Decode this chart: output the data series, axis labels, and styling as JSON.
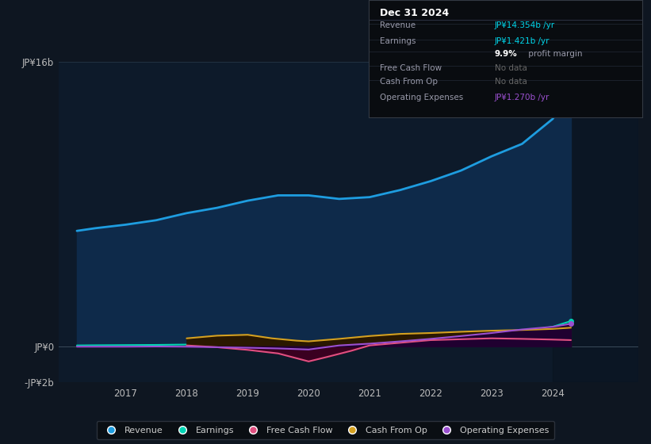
{
  "background_color": "#0e1621",
  "chart_bg_color": "#0d1a2a",
  "ylim": [
    -2000000000.0,
    16000000000.0
  ],
  "ytick_labels": [
    "-JP¥2b",
    "JP¥0",
    "JP¥16b"
  ],
  "ytick_values": [
    -2000000000.0,
    0,
    16000000000.0
  ],
  "xlabel_years": [
    2017,
    2018,
    2019,
    2020,
    2021,
    2022,
    2023,
    2024
  ],
  "xlim_left": 2015.9,
  "xlim_right": 2025.4,
  "shaded_start": 2024.0,
  "series": {
    "Revenue": {
      "color": "#1e9de0",
      "fill_color": "#0e2a4a",
      "x": [
        2016.2,
        2016.5,
        2017.0,
        2017.5,
        2018.0,
        2018.5,
        2019.0,
        2019.5,
        2020.0,
        2020.5,
        2021.0,
        2021.5,
        2022.0,
        2022.5,
        2023.0,
        2023.5,
        2024.0,
        2024.3
      ],
      "y": [
        6500000000.0,
        6650000000.0,
        6850000000.0,
        7100000000.0,
        7500000000.0,
        7800000000.0,
        8200000000.0,
        8500000000.0,
        8500000000.0,
        8300000000.0,
        8400000000.0,
        8800000000.0,
        9300000000.0,
        9900000000.0,
        10700000000.0,
        11400000000.0,
        12800000000.0,
        14354000000.0
      ]
    },
    "Earnings": {
      "color": "#00d4b4",
      "fill_color": "#003030",
      "x": [
        2016.2,
        2016.5,
        2017.0,
        2017.5,
        2018.0,
        2018.5,
        2019.0,
        2019.5,
        2020.0,
        2020.5,
        2021.0,
        2021.5,
        2022.0,
        2022.5,
        2023.0,
        2023.5,
        2024.0,
        2024.3
      ],
      "y": [
        50000000.0,
        60000000.0,
        70000000.0,
        80000000.0,
        100000000.0,
        120000000.0,
        130000000.0,
        110000000.0,
        60000000.0,
        40000000.0,
        120000000.0,
        180000000.0,
        280000000.0,
        420000000.0,
        620000000.0,
        850000000.0,
        1100000000.0,
        1421000000.0
      ]
    },
    "FreeCashFlow": {
      "color": "#e05080",
      "fill_color": "#3a0020",
      "x": [
        2018.0,
        2018.5,
        2019.0,
        2019.5,
        2020.0,
        2020.3,
        2020.7,
        2021.0,
        2021.5,
        2022.0,
        2022.5,
        2023.0,
        2023.5,
        2024.0,
        2024.3
      ],
      "y": [
        50000000.0,
        -50000000.0,
        -200000000.0,
        -400000000.0,
        -850000000.0,
        -600000000.0,
        -250000000.0,
        50000000.0,
        200000000.0,
        350000000.0,
        400000000.0,
        450000000.0,
        420000000.0,
        380000000.0,
        350000000.0
      ]
    },
    "CashFromOp": {
      "color": "#d4a020",
      "fill_color": "#2a1800",
      "x": [
        2018.0,
        2018.5,
        2019.0,
        2019.4,
        2019.8,
        2020.0,
        2020.5,
        2021.0,
        2021.5,
        2022.0,
        2022.5,
        2023.0,
        2023.5,
        2024.0,
        2024.3
      ],
      "y": [
        450000000.0,
        600000000.0,
        650000000.0,
        450000000.0,
        320000000.0,
        280000000.0,
        420000000.0,
        580000000.0,
        700000000.0,
        750000000.0,
        820000000.0,
        880000000.0,
        920000000.0,
        980000000.0,
        1050000000.0
      ]
    },
    "OperatingExpenses": {
      "color": "#9b50d0",
      "fill_color": "#200030",
      "x": [
        2016.2,
        2016.5,
        2017.0,
        2017.5,
        2018.0,
        2018.5,
        2019.0,
        2019.5,
        2020.0,
        2020.5,
        2021.0,
        2021.5,
        2022.0,
        2022.5,
        2023.0,
        2023.5,
        2024.0,
        2024.3
      ],
      "y": [
        -20000000.0,
        -20000000.0,
        -20000000.0,
        -10000000.0,
        -20000000.0,
        -50000000.0,
        -80000000.0,
        -120000000.0,
        -180000000.0,
        50000000.0,
        150000000.0,
        280000000.0,
        420000000.0,
        580000000.0,
        750000000.0,
        950000000.0,
        1100000000.0,
        1270000000.0
      ]
    }
  },
  "info_box": {
    "date": "Dec 31 2024",
    "rows": [
      {
        "label": "Revenue",
        "value": "JP¥14.354b /yr",
        "value_color": "#00d4e8"
      },
      {
        "label": "Earnings",
        "value": "JP¥1.421b /yr",
        "value_color": "#00d4e8"
      },
      {
        "label": "",
        "value": "9.9% profit margin",
        "value_color": "#aaaaaa",
        "bold_prefix": "9.9%"
      },
      {
        "label": "Free Cash Flow",
        "value": "No data",
        "value_color": "#666666"
      },
      {
        "label": "Cash From Op",
        "value": "No data",
        "value_color": "#666666"
      },
      {
        "label": "Operating Expenses",
        "value": "JP¥1.270b /yr",
        "value_color": "#9b50d0"
      }
    ]
  },
  "legend": [
    {
      "label": "Revenue",
      "color": "#1e9de0"
    },
    {
      "label": "Earnings",
      "color": "#00d4b4"
    },
    {
      "label": "Free Cash Flow",
      "color": "#e05080"
    },
    {
      "label": "Cash From Op",
      "color": "#d4a020"
    },
    {
      "label": "Operating Expenses",
      "color": "#9b50d0"
    }
  ]
}
